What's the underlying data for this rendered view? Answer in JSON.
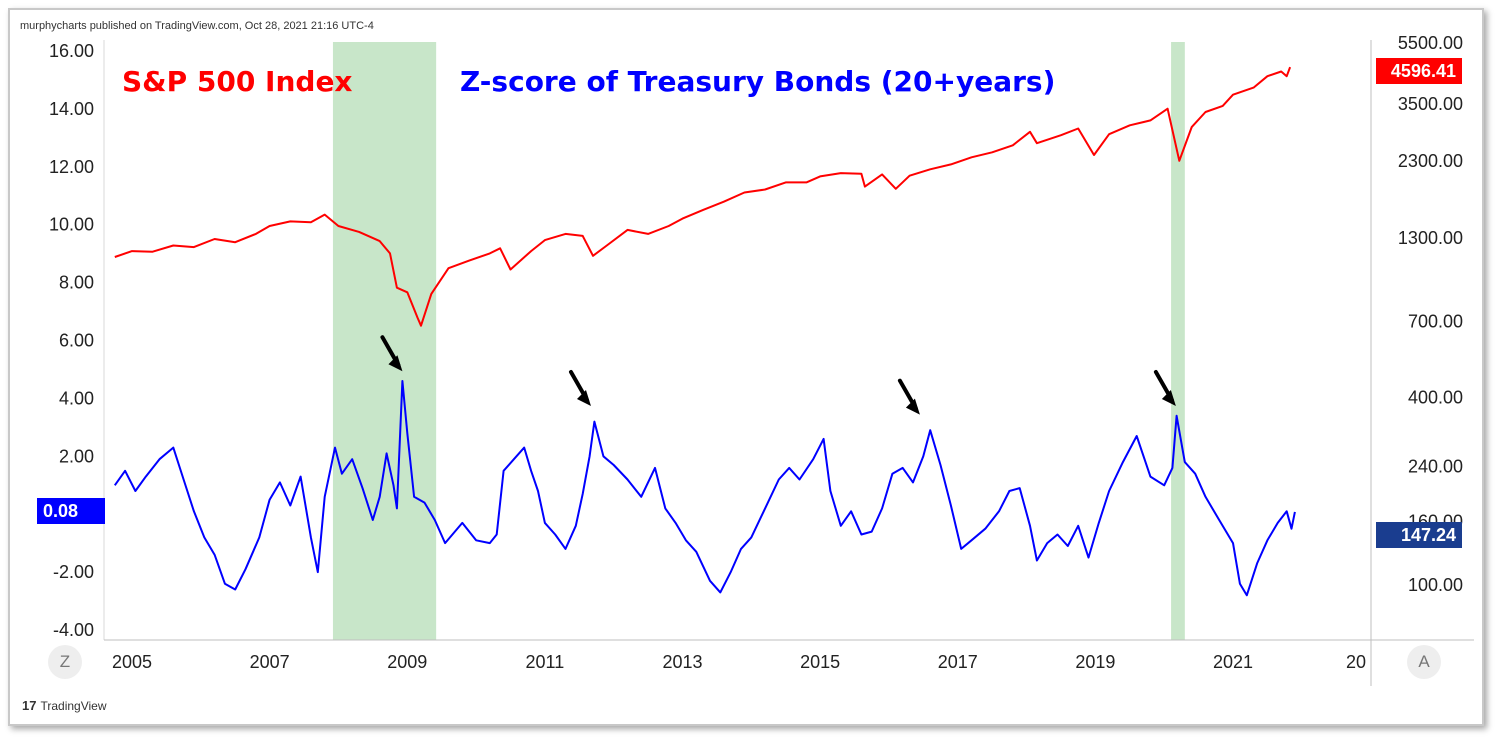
{
  "header": {
    "publisher": "murphycharts published on TradingView.com, Oct 28, 2021 21:16 UTC-4"
  },
  "titles": {
    "sp500": "S&P 500 Index",
    "zscore": "Z-score of Treasury Bonds (20+years)"
  },
  "badges": {
    "zscore_last": "0.08",
    "sp500_last": "4596.41",
    "secondary_last": "147.24"
  },
  "buttons": {
    "z": "Z",
    "a": "A"
  },
  "footer": {
    "logo_mark": "17",
    "logo_text": "TradingView"
  },
  "colors": {
    "sp500": "#ff0000",
    "zscore": "#0000ff",
    "shading": "#c8e6c9",
    "arrows": "#000000"
  },
  "chart_data": {
    "type": "line",
    "grid": false,
    "x_axis": {
      "ticks": [
        "2005",
        "2007",
        "2009",
        "2011",
        "2013",
        "2015",
        "2017",
        "2019",
        "2021",
        "20"
      ],
      "range": [
        2004.7,
        2023.0
      ]
    },
    "left_axis": {
      "ticks": [
        "16.00",
        "14.00",
        "12.00",
        "10.00",
        "8.00",
        "6.00",
        "4.00",
        "2.00",
        "-2.00",
        "-4.00"
      ],
      "range": [
        -4,
        16
      ]
    },
    "right_axis": {
      "scale": "log",
      "ticks": [
        "5500.00",
        "3500.00",
        "2300.00",
        "1300.00",
        "700.00",
        "400.00",
        "240.00",
        "160.00",
        "100.00"
      ]
    },
    "shaded_periods": [
      {
        "start": 2007.92,
        "end": 2009.42
      },
      {
        "start": 2020.1,
        "end": 2020.3
      }
    ],
    "arrows_at": [
      {
        "x": 2008.93,
        "y": 4.8
      },
      {
        "x": 2011.67,
        "y": 3.6
      },
      {
        "x": 2016.45,
        "y": 3.3
      },
      {
        "x": 2020.17,
        "y": 3.6
      }
    ],
    "series": [
      {
        "name": "S&P 500 Index",
        "axis": "right",
        "color": "#ff0000",
        "points": [
          [
            2004.75,
            1130
          ],
          [
            2005.0,
            1180
          ],
          [
            2005.3,
            1175
          ],
          [
            2005.6,
            1230
          ],
          [
            2005.9,
            1215
          ],
          [
            2006.2,
            1290
          ],
          [
            2006.5,
            1260
          ],
          [
            2006.8,
            1340
          ],
          [
            2007.0,
            1420
          ],
          [
            2007.3,
            1470
          ],
          [
            2007.6,
            1460
          ],
          [
            2007.8,
            1545
          ],
          [
            2008.0,
            1420
          ],
          [
            2008.3,
            1360
          ],
          [
            2008.6,
            1270
          ],
          [
            2008.75,
            1160
          ],
          [
            2008.85,
            900
          ],
          [
            2009.0,
            870
          ],
          [
            2009.15,
            720
          ],
          [
            2009.2,
            680
          ],
          [
            2009.35,
            860
          ],
          [
            2009.6,
            1040
          ],
          [
            2009.9,
            1100
          ],
          [
            2010.2,
            1160
          ],
          [
            2010.35,
            1205
          ],
          [
            2010.5,
            1030
          ],
          [
            2010.8,
            1180
          ],
          [
            2011.0,
            1280
          ],
          [
            2011.3,
            1340
          ],
          [
            2011.55,
            1320
          ],
          [
            2011.7,
            1140
          ],
          [
            2011.9,
            1230
          ],
          [
            2012.2,
            1380
          ],
          [
            2012.5,
            1340
          ],
          [
            2012.8,
            1420
          ],
          [
            2013.0,
            1500
          ],
          [
            2013.3,
            1600
          ],
          [
            2013.6,
            1700
          ],
          [
            2013.9,
            1820
          ],
          [
            2014.2,
            1860
          ],
          [
            2014.5,
            1960
          ],
          [
            2014.8,
            1960
          ],
          [
            2015.0,
            2050
          ],
          [
            2015.3,
            2100
          ],
          [
            2015.6,
            2090
          ],
          [
            2015.65,
            1900
          ],
          [
            2015.9,
            2080
          ],
          [
            2016.1,
            1870
          ],
          [
            2016.3,
            2060
          ],
          [
            2016.6,
            2160
          ],
          [
            2016.9,
            2240
          ],
          [
            2017.2,
            2360
          ],
          [
            2017.5,
            2450
          ],
          [
            2017.8,
            2580
          ],
          [
            2018.05,
            2850
          ],
          [
            2018.15,
            2620
          ],
          [
            2018.5,
            2780
          ],
          [
            2018.75,
            2920
          ],
          [
            2018.98,
            2400
          ],
          [
            2019.2,
            2800
          ],
          [
            2019.5,
            2990
          ],
          [
            2019.8,
            3100
          ],
          [
            2020.05,
            3380
          ],
          [
            2020.22,
            2300
          ],
          [
            2020.4,
            2950
          ],
          [
            2020.6,
            3300
          ],
          [
            2020.85,
            3450
          ],
          [
            2021.0,
            3750
          ],
          [
            2021.3,
            3950
          ],
          [
            2021.5,
            4300
          ],
          [
            2021.7,
            4450
          ],
          [
            2021.78,
            4300
          ],
          [
            2021.83,
            4596
          ]
        ]
      },
      {
        "name": "Z-score of Treasury Bonds (20+years)",
        "axis": "left",
        "color": "#0000ff",
        "points": [
          [
            2004.75,
            1.0
          ],
          [
            2004.9,
            1.5
          ],
          [
            2005.05,
            0.8
          ],
          [
            2005.2,
            1.3
          ],
          [
            2005.4,
            1.9
          ],
          [
            2005.6,
            2.3
          ],
          [
            2005.75,
            1.2
          ],
          [
            2005.9,
            0.1
          ],
          [
            2006.05,
            -0.8
          ],
          [
            2006.2,
            -1.4
          ],
          [
            2006.35,
            -2.4
          ],
          [
            2006.5,
            -2.6
          ],
          [
            2006.65,
            -1.9
          ],
          [
            2006.85,
            -0.8
          ],
          [
            2007.0,
            0.5
          ],
          [
            2007.15,
            1.1
          ],
          [
            2007.3,
            0.3
          ],
          [
            2007.45,
            1.3
          ],
          [
            2007.6,
            -0.8
          ],
          [
            2007.7,
            -2.0
          ],
          [
            2007.8,
            0.6
          ],
          [
            2007.95,
            2.3
          ],
          [
            2008.05,
            1.4
          ],
          [
            2008.2,
            1.9
          ],
          [
            2008.35,
            0.9
          ],
          [
            2008.5,
            -0.2
          ],
          [
            2008.6,
            0.6
          ],
          [
            2008.7,
            2.1
          ],
          [
            2008.8,
            1.0
          ],
          [
            2008.85,
            0.2
          ],
          [
            2008.93,
            4.6
          ],
          [
            2009.0,
            2.8
          ],
          [
            2009.1,
            0.6
          ],
          [
            2009.25,
            0.4
          ],
          [
            2009.4,
            -0.2
          ],
          [
            2009.55,
            -1.0
          ],
          [
            2009.8,
            -0.3
          ],
          [
            2010.0,
            -0.9
          ],
          [
            2010.2,
            -1.0
          ],
          [
            2010.3,
            -0.7
          ],
          [
            2010.4,
            1.5
          ],
          [
            2010.55,
            1.9
          ],
          [
            2010.7,
            2.3
          ],
          [
            2010.8,
            1.5
          ],
          [
            2010.9,
            0.8
          ],
          [
            2011.0,
            -0.3
          ],
          [
            2011.15,
            -0.7
          ],
          [
            2011.3,
            -1.2
          ],
          [
            2011.45,
            -0.4
          ],
          [
            2011.55,
            0.7
          ],
          [
            2011.65,
            2.0
          ],
          [
            2011.72,
            3.2
          ],
          [
            2011.85,
            2.0
          ],
          [
            2012.0,
            1.7
          ],
          [
            2012.2,
            1.2
          ],
          [
            2012.4,
            0.6
          ],
          [
            2012.6,
            1.6
          ],
          [
            2012.75,
            0.2
          ],
          [
            2012.9,
            -0.3
          ],
          [
            2013.05,
            -0.9
          ],
          [
            2013.2,
            -1.3
          ],
          [
            2013.4,
            -2.3
          ],
          [
            2013.55,
            -2.7
          ],
          [
            2013.7,
            -2.0
          ],
          [
            2013.85,
            -1.2
          ],
          [
            2014.0,
            -0.8
          ],
          [
            2014.2,
            0.2
          ],
          [
            2014.4,
            1.2
          ],
          [
            2014.55,
            1.6
          ],
          [
            2014.7,
            1.2
          ],
          [
            2014.9,
            1.9
          ],
          [
            2015.05,
            2.6
          ],
          [
            2015.15,
            0.8
          ],
          [
            2015.3,
            -0.4
          ],
          [
            2015.45,
            0.1
          ],
          [
            2015.6,
            -0.7
          ],
          [
            2015.75,
            -0.6
          ],
          [
            2015.9,
            0.2
          ],
          [
            2016.05,
            1.4
          ],
          [
            2016.2,
            1.6
          ],
          [
            2016.35,
            1.1
          ],
          [
            2016.5,
            2.0
          ],
          [
            2016.6,
            2.9
          ],
          [
            2016.75,
            1.7
          ],
          [
            2016.9,
            0.3
          ],
          [
            2017.05,
            -1.2
          ],
          [
            2017.2,
            -0.9
          ],
          [
            2017.4,
            -0.5
          ],
          [
            2017.6,
            0.1
          ],
          [
            2017.75,
            0.8
          ],
          [
            2017.9,
            0.9
          ],
          [
            2018.05,
            -0.4
          ],
          [
            2018.15,
            -1.6
          ],
          [
            2018.3,
            -1.0
          ],
          [
            2018.45,
            -0.7
          ],
          [
            2018.6,
            -1.1
          ],
          [
            2018.75,
            -0.4
          ],
          [
            2018.9,
            -1.5
          ],
          [
            2019.05,
            -0.3
          ],
          [
            2019.2,
            0.8
          ],
          [
            2019.4,
            1.8
          ],
          [
            2019.6,
            2.7
          ],
          [
            2019.8,
            1.3
          ],
          [
            2020.0,
            1.0
          ],
          [
            2020.12,
            1.6
          ],
          [
            2020.18,
            3.4
          ],
          [
            2020.3,
            1.8
          ],
          [
            2020.45,
            1.4
          ],
          [
            2020.6,
            0.6
          ],
          [
            2020.8,
            -0.2
          ],
          [
            2021.0,
            -1.0
          ],
          [
            2021.1,
            -2.4
          ],
          [
            2021.2,
            -2.8
          ],
          [
            2021.35,
            -1.7
          ],
          [
            2021.5,
            -0.9
          ],
          [
            2021.65,
            -0.3
          ],
          [
            2021.78,
            0.1
          ],
          [
            2021.85,
            -0.5
          ],
          [
            2021.9,
            0.08
          ]
        ]
      }
    ]
  }
}
